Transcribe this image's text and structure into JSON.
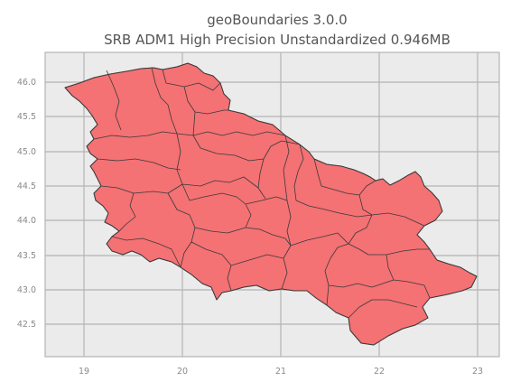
{
  "map": {
    "title_line1": "geoBoundaries 3.0.0",
    "title_line2": "SRB ADM1 High Precision Unstandardized 0.946MB",
    "x_ticks": [
      "19",
      "20",
      "21",
      "22",
      "23"
    ],
    "y_ticks": [
      "46.0",
      "45.5",
      "45.0",
      "44.5",
      "44.0",
      "43.5",
      "43.0",
      "42.5"
    ],
    "background_color": "#ebebeb",
    "fill_color": "#f47174",
    "boundary_color": "#3a3a3a"
  }
}
